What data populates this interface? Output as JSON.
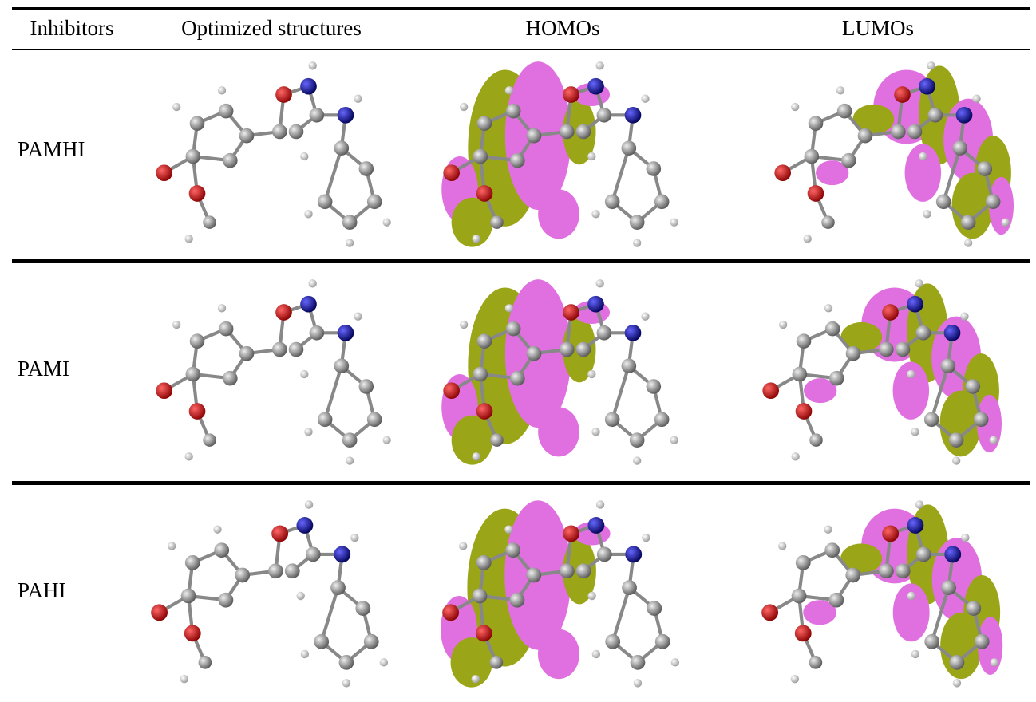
{
  "table": {
    "header": [
      "Inhibitors",
      "Optimized structures",
      "HOMOs",
      "LUMOs"
    ],
    "rows": [
      [
        "PAMHI"
      ],
      [
        "PAMI"
      ],
      [
        "PAHI"
      ]
    ]
  }
}
